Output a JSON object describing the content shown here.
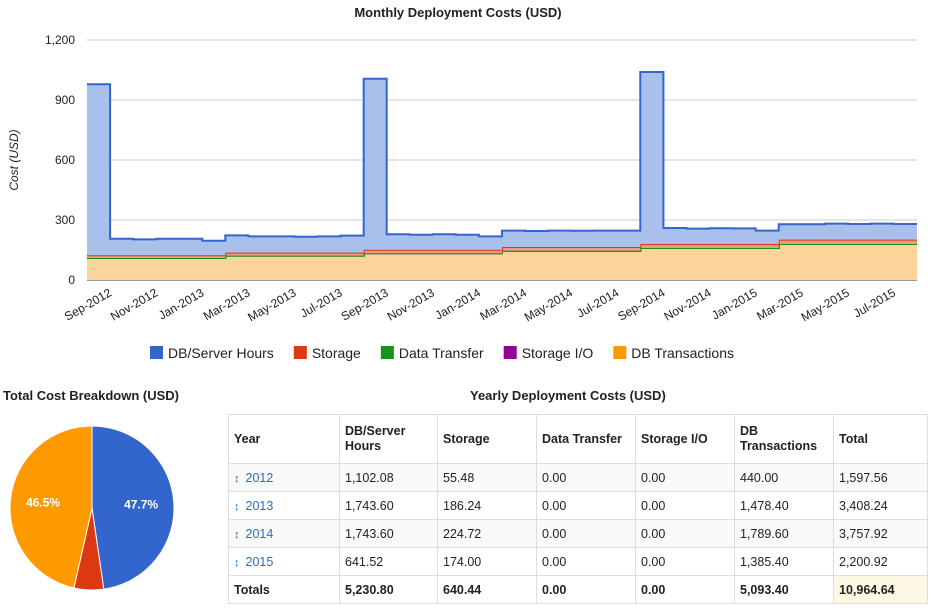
{
  "header": {
    "main_title": "Monthly Deployment Costs (USD)",
    "pie_title": "Total Cost Breakdown (USD)",
    "table_title": "Yearly Deployment Costs (USD)"
  },
  "chart_data": [
    {
      "type": "area",
      "stacked": true,
      "step": true,
      "title": "Monthly Deployment Costs (USD)",
      "xlabel": "",
      "ylabel": "Cost (USD)",
      "ylim": [
        0,
        1200
      ],
      "yticks": [
        "0",
        "300",
        "600",
        "900",
        "1,200"
      ],
      "ytick_values": [
        0,
        300,
        600,
        900,
        1200
      ],
      "xtick_labels": [
        "Sep-2012",
        "Nov-2012",
        "Jan-2013",
        "Mar-2013",
        "May-2013",
        "Jul-2013",
        "Sep-2013",
        "Nov-2013",
        "Jan-2014",
        "Mar-2014",
        "May-2014",
        "Jul-2014",
        "Sep-2014",
        "Nov-2014",
        "Jan-2015",
        "Mar-2015",
        "May-2015",
        "Jul-2015"
      ],
      "grid": true,
      "legend": "bottom",
      "categories": [
        "Sep-2012",
        "Oct-2012",
        "Nov-2012",
        "Dec-2012",
        "Jan-2013",
        "Feb-2013",
        "Mar-2013",
        "Apr-2013",
        "May-2013",
        "Jun-2013",
        "Jul-2013",
        "Aug-2013",
        "Sep-2013",
        "Oct-2013",
        "Nov-2013",
        "Dec-2013",
        "Jan-2014",
        "Feb-2014",
        "Mar-2014",
        "Apr-2014",
        "May-2014",
        "Jun-2014",
        "Jul-2014",
        "Aug-2014",
        "Sep-2014",
        "Oct-2014",
        "Nov-2014",
        "Dec-2014",
        "Jan-2015",
        "Feb-2015",
        "Mar-2015",
        "Apr-2015",
        "May-2015",
        "Jun-2015",
        "Jul-2015",
        "Aug-2015"
      ],
      "series": [
        {
          "name": "DB Transactions",
          "color": "#ff9900",
          "fill": "#fbd49a",
          "values": [
            110,
            110,
            110,
            110,
            110,
            110,
            122,
            122,
            122,
            122,
            122,
            122,
            134,
            134,
            134,
            134,
            134,
            134,
            146,
            146,
            146,
            146,
            146,
            146,
            160,
            160,
            160,
            160,
            160,
            160,
            180,
            180,
            180,
            180,
            180,
            180
          ]
        },
        {
          "name": "Storage I/O",
          "color": "#990099",
          "fill": "#990099",
          "values": [
            0,
            0,
            0,
            0,
            0,
            0,
            0,
            0,
            0,
            0,
            0,
            0,
            0,
            0,
            0,
            0,
            0,
            0,
            0,
            0,
            0,
            0,
            0,
            0,
            0,
            0,
            0,
            0,
            0,
            0,
            0,
            0,
            0,
            0,
            0,
            0
          ]
        },
        {
          "name": "Data Transfer",
          "color": "#109618",
          "fill": "#109618",
          "values": [
            0,
            0,
            0,
            0,
            0,
            0,
            0,
            0,
            0,
            0,
            0,
            0,
            0,
            0,
            0,
            0,
            0,
            0,
            0,
            0,
            0,
            0,
            0,
            0,
            0,
            0,
            0,
            0,
            0,
            0,
            0,
            0,
            0,
            0,
            0,
            0
          ]
        },
        {
          "name": "Storage",
          "color": "#dc3912",
          "fill": "#ef9a80",
          "values": [
            14,
            14,
            14,
            14,
            14,
            14,
            15,
            15,
            15,
            15,
            15,
            15,
            17,
            17,
            17,
            17,
            17,
            17,
            19,
            19,
            19,
            19,
            19,
            19,
            20,
            20,
            20,
            20,
            20,
            20,
            22,
            22,
            22,
            22,
            22,
            22
          ]
        },
        {
          "name": "DB/Server Hours",
          "color": "#3366cc",
          "fill": "#a9c0ec",
          "values": [
            855,
            82,
            79,
            82,
            82,
            72,
            86,
            81,
            81,
            79,
            81,
            85,
            855,
            78,
            75,
            78,
            75,
            67,
            82,
            80,
            82,
            81,
            82,
            82,
            860,
            80,
            77,
            79,
            78,
            67,
            77,
            77,
            80,
            78,
            80,
            78
          ]
        }
      ]
    },
    {
      "type": "pie",
      "title": "Total Cost Breakdown (USD)",
      "categories": [
        "DB/Server Hours",
        "Storage",
        "Data Transfer",
        "Storage I/O",
        "DB Transactions"
      ],
      "values": [
        5230.8,
        640.44,
        0.0,
        0.0,
        5093.4
      ],
      "colors": [
        "#3366cc",
        "#dc3912",
        "#109618",
        "#990099",
        "#ff9900"
      ],
      "slice_labels": [
        "47.7%",
        "",
        "",
        "",
        "46.5%"
      ]
    }
  ],
  "table": {
    "headers": [
      "Year",
      "DB/Server Hours",
      "Storage",
      "Data Transfer",
      "Storage I/O",
      "DB Transactions",
      "Total"
    ],
    "rows": [
      {
        "year": "2012",
        "cells": [
          "1,102.08",
          "55.48",
          "0.00",
          "0.00",
          "440.00",
          "1,597.56"
        ]
      },
      {
        "year": "2013",
        "cells": [
          "1,743.60",
          "186.24",
          "0.00",
          "0.00",
          "1,478.40",
          "3,408.24"
        ]
      },
      {
        "year": "2014",
        "cells": [
          "1,743.60",
          "224.72",
          "0.00",
          "0.00",
          "1,789.60",
          "3,757.92"
        ]
      },
      {
        "year": "2015",
        "cells": [
          "641.52",
          "174.00",
          "0.00",
          "0.00",
          "1,385.40",
          "2,200.92"
        ]
      }
    ],
    "totals": {
      "label": "Totals",
      "cells": [
        "5,230.80",
        "640.44",
        "0.00",
        "0.00",
        "5,093.40",
        "10,964.64"
      ]
    },
    "sort_icon": "↕"
  }
}
